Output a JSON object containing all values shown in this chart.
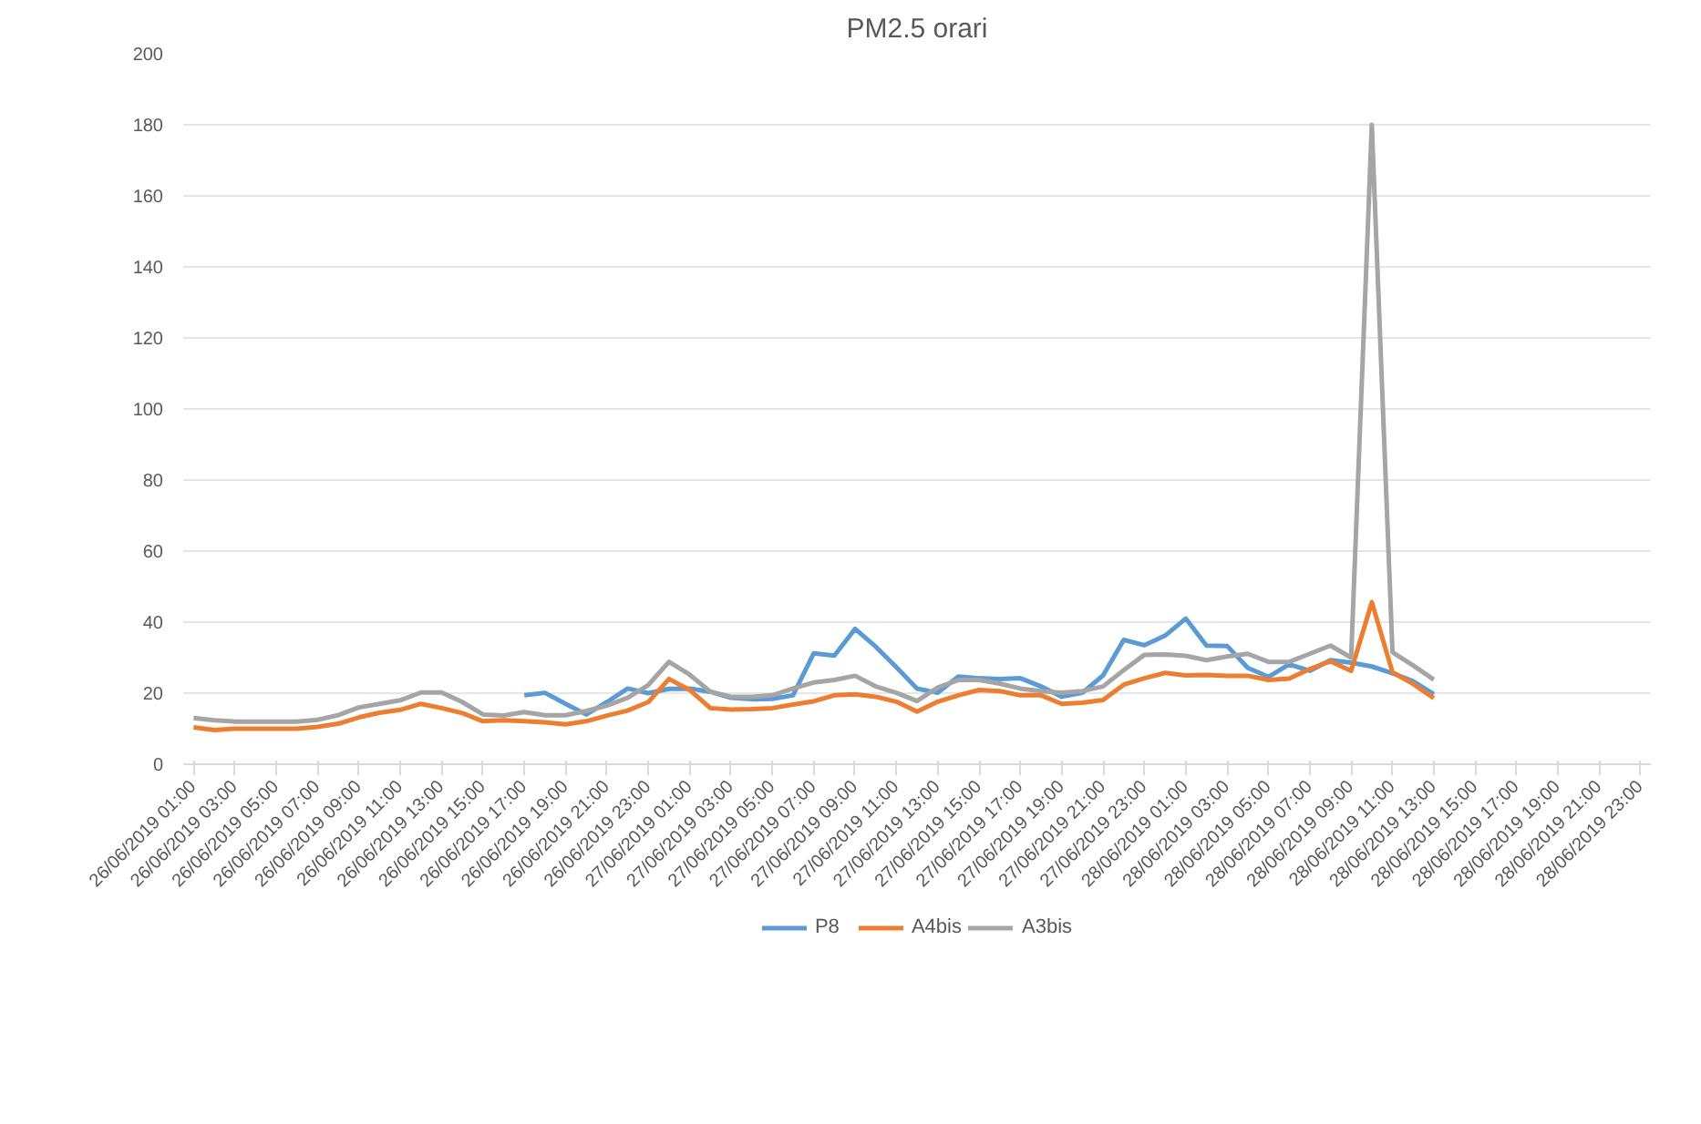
{
  "chart_data": {
    "type": "line",
    "title": "PM2.5 orari",
    "categories": [
      "26/06/2019 01:00",
      null,
      "26/06/2019 03:00",
      null,
      "26/06/2019 05:00",
      null,
      "26/06/2019 07:00",
      null,
      "26/06/2019 09:00",
      null,
      "26/06/2019 11:00",
      null,
      "26/06/2019 13:00",
      null,
      "26/06/2019 15:00",
      null,
      "26/06/2019 17:00",
      null,
      "26/06/2019 19:00",
      null,
      "26/06/2019 21:00",
      null,
      "26/06/2019 23:00",
      null,
      "27/06/2019 01:00",
      null,
      "27/06/2019 03:00",
      null,
      "27/06/2019 05:00",
      null,
      "27/06/2019 07:00",
      null,
      "27/06/2019 09:00",
      null,
      "27/06/2019 11:00",
      null,
      "27/06/2019 13:00",
      null,
      "27/06/2019 15:00",
      null,
      "27/06/2019 17:00",
      null,
      "27/06/2019 19:00",
      null,
      "27/06/2019 21:00",
      null,
      "27/06/2019 23:00",
      null,
      "28/06/2019 01:00",
      null,
      "28/06/2019 03:00",
      null,
      "28/06/2019 05:00",
      null,
      "28/06/2019 07:00",
      null,
      "28/06/2019 09:00",
      null,
      "28/06/2019 11:00",
      null,
      "28/06/2019 13:00",
      null,
      "28/06/2019 15:00",
      null,
      "28/06/2019 17:00",
      null,
      "28/06/2019 19:00",
      null,
      "28/06/2019 21:00",
      null,
      "28/06/2019 23:00"
    ],
    "series": [
      {
        "name": "P8",
        "color": "#5b9bd5",
        "values": [
          null,
          null,
          null,
          null,
          null,
          null,
          null,
          null,
          null,
          null,
          null,
          null,
          null,
          null,
          null,
          null,
          19.4,
          20.1,
          17,
          14,
          17.5,
          21.3,
          20,
          21.2,
          21.3,
          20.4,
          18.7,
          18.3,
          18.4,
          19.4,
          31.2,
          30.6,
          38.1,
          33.1,
          27.3,
          21.3,
          20.1,
          24.7,
          24.2,
          24,
          24.2,
          21.9,
          19,
          20.1,
          25,
          35,
          33.5,
          36.2,
          41,
          33.4,
          33.3,
          27.1,
          24.6,
          28.1,
          26.3,
          29.3,
          28.6,
          27.5,
          25.6,
          23.4,
          19.7,
          null,
          null,
          null,
          null,
          null,
          null,
          null,
          null,
          null,
          null
        ]
      },
      {
        "name": "A4bis",
        "color": "#ed7d31",
        "values": [
          10.4,
          9.6,
          10,
          10,
          10,
          10,
          10.5,
          11.4,
          13.2,
          14.5,
          15.3,
          17,
          15.8,
          14.4,
          12.1,
          12.4,
          12.1,
          11.8,
          11.2,
          12.1,
          13.7,
          15.1,
          17.5,
          24,
          20.9,
          15.8,
          15.4,
          15.5,
          15.8,
          16.8,
          17.7,
          19.4,
          19.7,
          19,
          17.6,
          14.8,
          17.6,
          19.4,
          20.9,
          20.6,
          19.4,
          19.4,
          17,
          17.3,
          18.1,
          22.4,
          24.2,
          25.7,
          25,
          25.1,
          24.9,
          24.9,
          23.7,
          24.1,
          26.8,
          29,
          26.3,
          45.6,
          25.9,
          22.6,
          18.6,
          null,
          null,
          null,
          null,
          null,
          null,
          null,
          null,
          null,
          null
        ]
      },
      {
        "name": "A3bis",
        "color": "#a5a5a5",
        "values": [
          13,
          12.4,
          12,
          12,
          12,
          12,
          12.5,
          13.8,
          16,
          17,
          18,
          20.2,
          20.2,
          17.5,
          14,
          13.7,
          14.7,
          13.8,
          13.8,
          15,
          16.5,
          18.7,
          22.3,
          28.8,
          25.2,
          20.4,
          19,
          19,
          19.4,
          21.3,
          23,
          23.7,
          24.9,
          21.9,
          20.1,
          17.8,
          21.6,
          23.7,
          23.7,
          22.7,
          21.3,
          20.6,
          20.1,
          20.6,
          21.9,
          26.5,
          30.8,
          30.9,
          30.5,
          29.3,
          30.3,
          31.1,
          28.8,
          28.8,
          31.1,
          33.4,
          30,
          180,
          31.5,
          27.8,
          23.8,
          null,
          null,
          null,
          null,
          null,
          null,
          null,
          null,
          null,
          null
        ]
      }
    ],
    "ylim": [
      0,
      200
    ],
    "yticks": [
      0,
      20,
      40,
      60,
      80,
      100,
      120,
      140,
      160,
      180,
      200
    ],
    "grid": "y",
    "legend": "bottom",
    "marker": "none",
    "line_style": "solid"
  }
}
